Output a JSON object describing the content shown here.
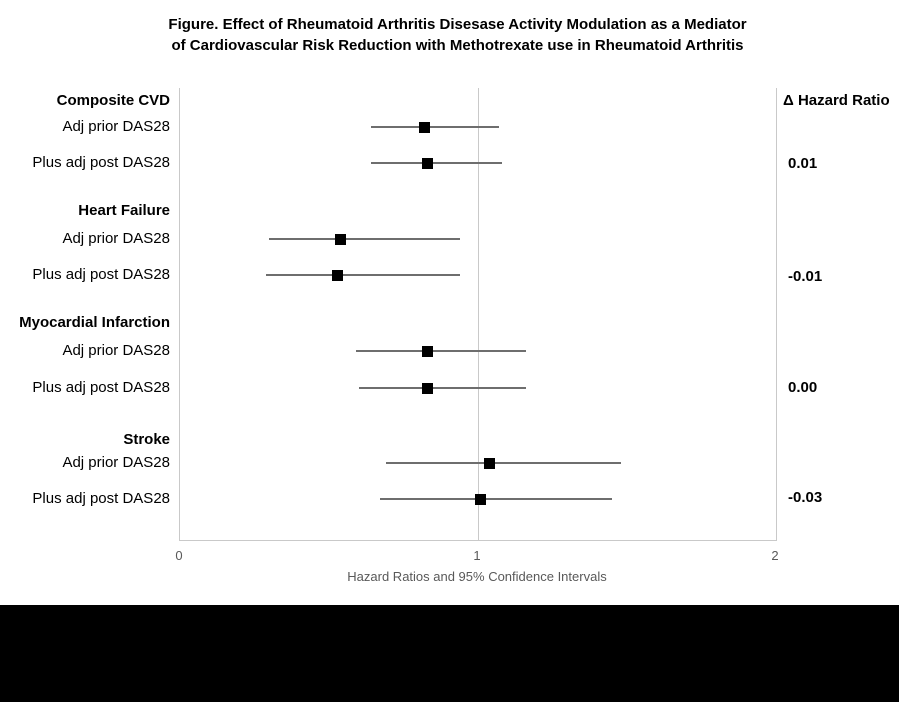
{
  "title": {
    "line1": "Figure. Effect of Rheumatoid Arthritis Disesase Activity Modulation as a Mediator",
    "line2": "of Cardiovascular Risk Reduction with Methotrexate use in Rheumatoid Arthritis"
  },
  "chart_data": {
    "type": "scatter",
    "subtype": "forest-plot",
    "title": "Figure. Effect of Rheumatoid Arthritis Disesase Activity Modulation as a Mediator of Cardiovascular Risk Reduction with Methotrexate use in Rheumatoid Arthritis",
    "xlabel": "Hazard Ratios and 95% Confidence Intervals",
    "xlim": [
      0,
      2
    ],
    "xtick_labels": [
      "0",
      "1",
      "2"
    ],
    "reference_line_x": 1,
    "delta_column_header": "Δ Hazard Ratio",
    "grid": false,
    "groups": [
      {
        "label": "Composite CVD",
        "rows": [
          {
            "label": "Adj prior DAS28",
            "hr": 0.82,
            "ci_low": 0.64,
            "ci_high": 1.07,
            "delta": null
          },
          {
            "label": "Plus adj post DAS28",
            "hr": 0.83,
            "ci_low": 0.64,
            "ci_high": 1.08,
            "delta": "0.01"
          }
        ]
      },
      {
        "label": "Heart Failure",
        "rows": [
          {
            "label": "Adj prior DAS28",
            "hr": 0.54,
            "ci_low": 0.3,
            "ci_high": 0.94,
            "delta": null
          },
          {
            "label": "Plus adj post DAS28",
            "hr": 0.53,
            "ci_low": 0.29,
            "ci_high": 0.94,
            "delta": "-0.01"
          }
        ]
      },
      {
        "label": "Myocardial Infarction",
        "rows": [
          {
            "label": "Adj prior DAS28",
            "hr": 0.83,
            "ci_low": 0.59,
            "ci_high": 1.16,
            "delta": null
          },
          {
            "label": "Plus adj post DAS28",
            "hr": 0.83,
            "ci_low": 0.6,
            "ci_high": 1.16,
            "delta": "0.00"
          }
        ]
      },
      {
        "label": "Stroke",
        "rows": [
          {
            "label": "Adj prior DAS28",
            "hr": 1.04,
            "ci_low": 0.69,
            "ci_high": 1.48,
            "delta": null
          },
          {
            "label": "Plus adj post DAS28",
            "hr": 1.01,
            "ci_low": 0.67,
            "ci_high": 1.45,
            "delta": "-0.03"
          }
        ]
      }
    ]
  },
  "colors": {
    "marker": "#000000",
    "ci_line": "#6e6e6e",
    "grid_line": "#c9c9c9",
    "axis_text": "#595959",
    "redaction_bar": "#000000"
  }
}
